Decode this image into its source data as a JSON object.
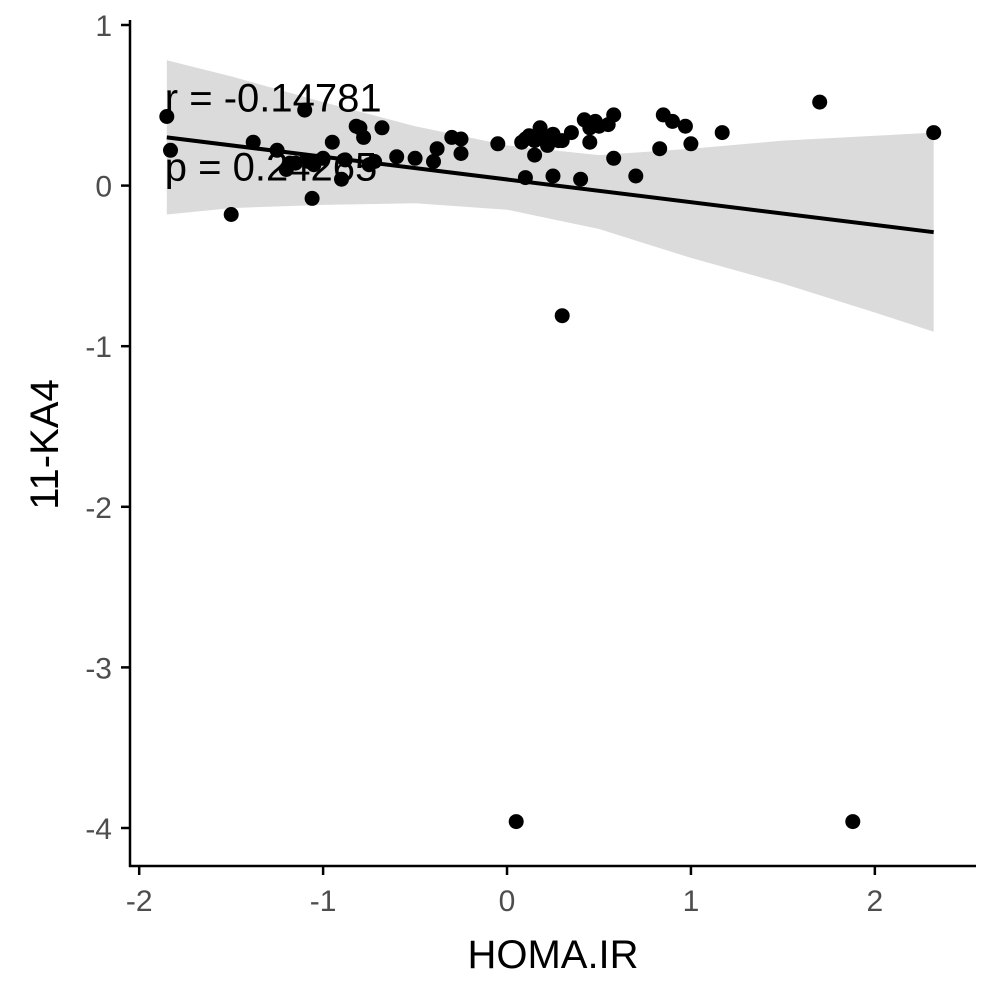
{
  "chart_data": {
    "type": "scatter",
    "title": "",
    "xlabel": "HOMA.IR",
    "ylabel": "11-KA4",
    "xlim": [
      -2.05,
      2.55
    ],
    "ylim": [
      -4.2,
      1.0
    ],
    "xticks": [
      -2,
      -1,
      0,
      1,
      2
    ],
    "yticks": [
      1,
      0,
      -1,
      -2,
      -3,
      -4
    ],
    "xtick_labels": [
      "-2",
      "-1",
      "0",
      "1",
      "2"
    ],
    "ytick_labels": [
      "1",
      "0",
      "-1",
      "-2",
      "-3",
      "-4"
    ],
    "grid": false,
    "annotations": [
      {
        "text": "r = -0.14781",
        "x": -1.85,
        "y": 0.55
      },
      {
        "text": "p = 0.24265",
        "x": -1.85,
        "y": 0.12
      }
    ],
    "points": {
      "x": [
        -1.85,
        -1.83,
        -1.5,
        -1.38,
        -1.25,
        -1.2,
        -1.18,
        -1.15,
        -1.1,
        -1.08,
        -1.06,
        -1.05,
        -1.0,
        -0.95,
        -0.9,
        -0.88,
        -0.82,
        -0.8,
        -0.78,
        -0.75,
        -0.72,
        -0.68,
        -0.6,
        -0.5,
        -0.4,
        -0.38,
        -0.3,
        -0.25,
        -0.25,
        -0.05,
        0.05,
        0.08,
        0.1,
        0.1,
        0.12,
        0.15,
        0.15,
        0.18,
        0.2,
        0.22,
        0.25,
        0.25,
        0.28,
        0.3,
        0.3,
        0.35,
        0.4,
        0.42,
        0.45,
        0.45,
        0.48,
        0.5,
        0.55,
        0.58,
        0.58,
        0.7,
        0.83,
        0.85,
        0.9,
        0.97,
        1.0,
        1.17,
        1.7,
        1.88,
        2.32
      ],
      "y": [
        0.43,
        0.22,
        -0.18,
        0.27,
        0.22,
        0.1,
        0.14,
        0.14,
        0.47,
        0.15,
        -0.08,
        0.13,
        0.17,
        0.27,
        0.04,
        0.16,
        0.37,
        0.36,
        0.3,
        0.13,
        0.15,
        0.36,
        0.18,
        0.17,
        0.15,
        0.23,
        0.3,
        0.29,
        0.2,
        0.26,
        -3.96,
        0.27,
        0.29,
        0.05,
        0.31,
        0.28,
        0.19,
        0.36,
        0.3,
        0.25,
        0.32,
        0.06,
        0.28,
        0.28,
        -0.81,
        0.33,
        0.04,
        0.41,
        0.27,
        0.36,
        0.4,
        0.37,
        0.38,
        0.17,
        0.44,
        0.06,
        0.23,
        0.44,
        0.4,
        0.37,
        0.26,
        0.33,
        0.52,
        -3.96,
        0.33
      ]
    },
    "regression": {
      "x": [
        -1.85,
        2.32
      ],
      "y": [
        0.3,
        -0.29
      ]
    },
    "confidence_band": {
      "x": [
        -1.85,
        -1.5,
        -1.0,
        -0.5,
        0.0,
        0.5,
        1.0,
        1.5,
        2.0,
        2.32
      ],
      "upper": [
        0.78,
        0.68,
        0.52,
        0.37,
        0.25,
        0.19,
        0.23,
        0.28,
        0.31,
        0.33
      ],
      "lower": [
        -0.18,
        -0.14,
        -0.12,
        -0.11,
        -0.15,
        -0.27,
        -0.45,
        -0.61,
        -0.79,
        -0.91
      ]
    },
    "colors": {
      "points": "#000000",
      "line": "#000000",
      "band": "#d9d9d9",
      "axis": "#000000",
      "tick_label": "#4d4d4d"
    }
  }
}
